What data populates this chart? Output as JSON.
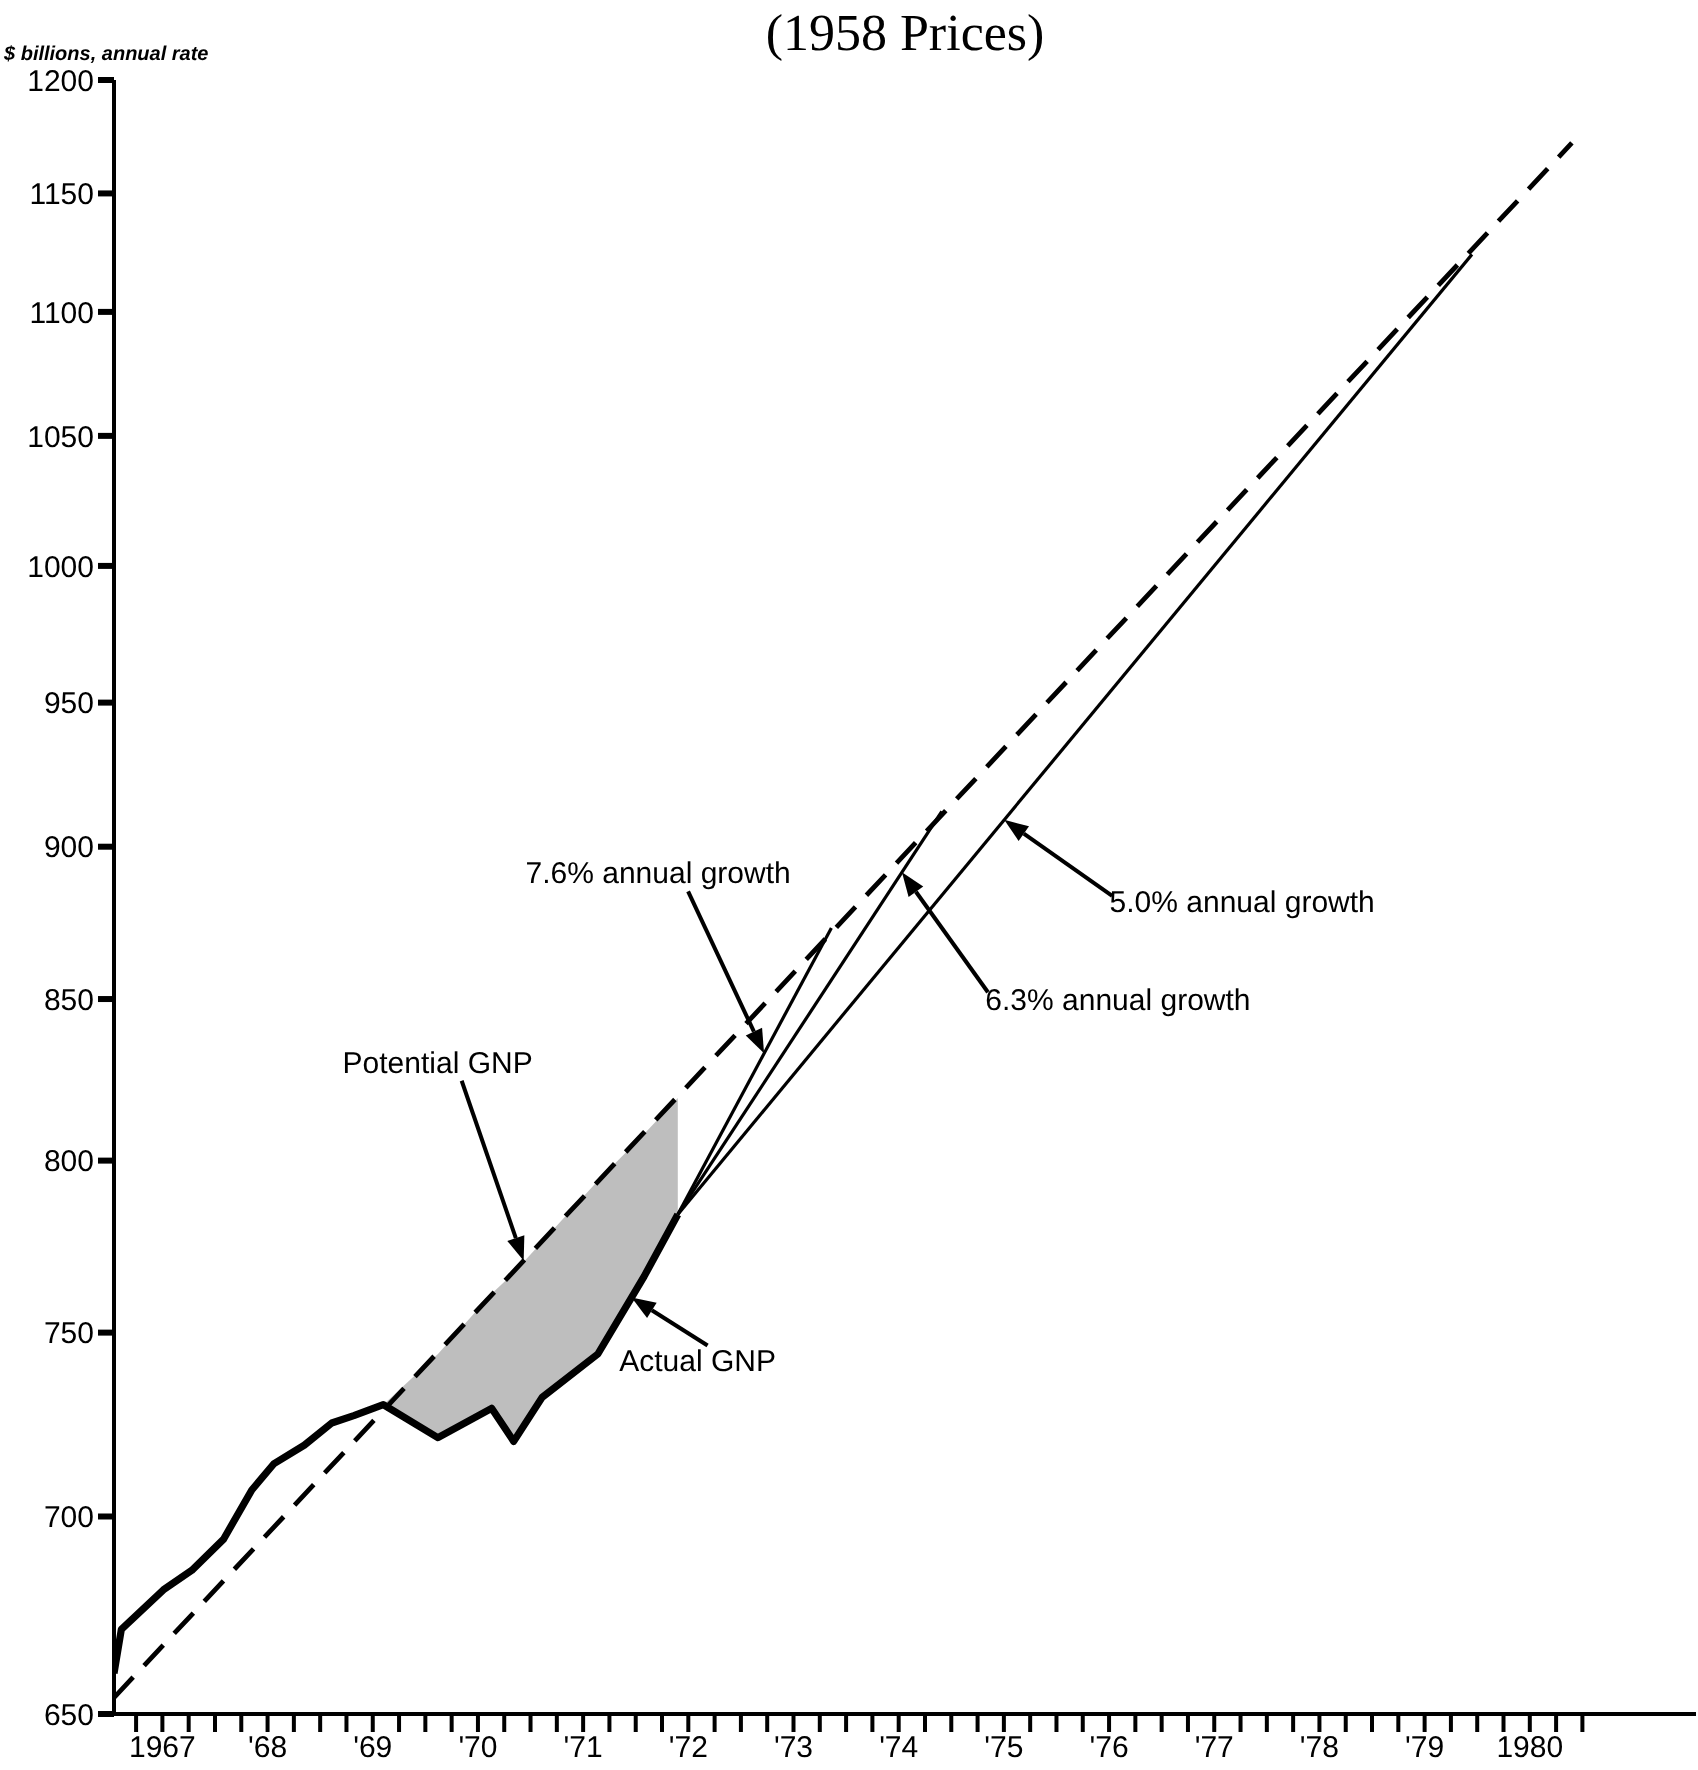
{
  "chart_data": {
    "type": "line",
    "title": "(1958 Prices)",
    "ylabel": "$ billions, annual rate",
    "log": "y",
    "ylim": [
      650,
      1200
    ],
    "yticks": [
      650,
      700,
      750,
      800,
      850,
      900,
      950,
      1000,
      1050,
      1100,
      1150,
      1200
    ],
    "xlim": [
      1966.54,
      1981.58
    ],
    "xticks": [
      {
        "value": 1966.75,
        "label": null
      },
      {
        "value": 1967,
        "label": "1967"
      },
      {
        "value": 1967.25,
        "label": null
      },
      {
        "value": 1967.5,
        "label": null
      },
      {
        "value": 1967.75,
        "label": null
      },
      {
        "value": 1968,
        "label": "'68"
      },
      {
        "value": 1968.25,
        "label": null
      },
      {
        "value": 1968.5,
        "label": null
      },
      {
        "value": 1968.75,
        "label": null
      },
      {
        "value": 1969,
        "label": "'69"
      },
      {
        "value": 1969.25,
        "label": null
      },
      {
        "value": 1969.5,
        "label": null
      },
      {
        "value": 1969.75,
        "label": null
      },
      {
        "value": 1970,
        "label": "'70"
      },
      {
        "value": 1970.25,
        "label": null
      },
      {
        "value": 1970.5,
        "label": null
      },
      {
        "value": 1970.75,
        "label": null
      },
      {
        "value": 1971,
        "label": "'71"
      },
      {
        "value": 1971.25,
        "label": null
      },
      {
        "value": 1971.5,
        "label": null
      },
      {
        "value": 1971.75,
        "label": null
      },
      {
        "value": 1972,
        "label": "'72"
      },
      {
        "value": 1972.25,
        "label": null
      },
      {
        "value": 1972.5,
        "label": null
      },
      {
        "value": 1972.75,
        "label": null
      },
      {
        "value": 1973,
        "label": "'73"
      },
      {
        "value": 1973.25,
        "label": null
      },
      {
        "value": 1973.5,
        "label": null
      },
      {
        "value": 1973.75,
        "label": null
      },
      {
        "value": 1974,
        "label": "'74"
      },
      {
        "value": 1974.25,
        "label": null
      },
      {
        "value": 1974.5,
        "label": null
      },
      {
        "value": 1974.75,
        "label": null
      },
      {
        "value": 1975,
        "label": "'75"
      },
      {
        "value": 1975.25,
        "label": null
      },
      {
        "value": 1975.5,
        "label": null
      },
      {
        "value": 1975.75,
        "label": null
      },
      {
        "value": 1976,
        "label": "'76"
      },
      {
        "value": 1976.25,
        "label": null
      },
      {
        "value": 1976.5,
        "label": null
      },
      {
        "value": 1976.75,
        "label": null
      },
      {
        "value": 1977,
        "label": "'77"
      },
      {
        "value": 1977.25,
        "label": null
      },
      {
        "value": 1977.5,
        "label": null
      },
      {
        "value": 1977.75,
        "label": null
      },
      {
        "value": 1978,
        "label": "'78"
      },
      {
        "value": 1978.25,
        "label": null
      },
      {
        "value": 1978.5,
        "label": null
      },
      {
        "value": 1978.75,
        "label": null
      },
      {
        "value": 1979,
        "label": "'79"
      },
      {
        "value": 1979.25,
        "label": null
      },
      {
        "value": 1979.5,
        "label": null
      },
      {
        "value": 1979.75,
        "label": null
      },
      {
        "value": 1980,
        "label": "1980"
      },
      {
        "value": 1980.25,
        "label": null
      },
      {
        "value": 1980.5,
        "label": null
      }
    ],
    "series": [
      {
        "line_style": "dashed",
        "color": "#000000",
        "x": [
          1966.54,
          1980.4
        ],
        "values": [
          654,
          1172
        ]
      },
      {
        "line_style": "solid",
        "color": "#000000",
        "x": [
          1966.54,
          1966.61,
          1967.01,
          1967.28,
          1967.58,
          1967.85,
          1968.06,
          1968.35,
          1968.61,
          1968.82,
          1969.1,
          1969.62,
          1970.13,
          1970.34,
          1970.61,
          1971.14,
          1971.58,
          1971.9
        ],
        "values": [
          660,
          671,
          681,
          686,
          694,
          707,
          714,
          719,
          725,
          727,
          730,
          721,
          729,
          720,
          732,
          744,
          766,
          784
        ],
        "lower": [
          null,
          null,
          null,
          null,
          null,
          null,
          null,
          null,
          null,
          null,
          730,
          721,
          729,
          720,
          732,
          744,
          766,
          784
        ],
        "upper": [
          null,
          null,
          null,
          null,
          null,
          null,
          null,
          null,
          null,
          null,
          730,
          744,
          761,
          767,
          776,
          794,
          808,
          819
        ]
      },
      {
        "line_style": "solid",
        "color": "#000000",
        "x": [
          1971.9,
          1973.36
        ],
        "values": [
          784,
          873
        ]
      },
      {
        "line_style": "solid",
        "color": "#000000",
        "x": [
          1971.9,
          1974.41
        ],
        "values": [
          784,
          912
        ]
      },
      {
        "line_style": "solid",
        "color": "#000000",
        "x": [
          1971.9,
          1979.45
        ],
        "values": [
          784,
          1124
        ]
      }
    ],
    "annotations": [
      "Potential GNP",
      "Actual GNP",
      "7.6% annual growth",
      "6.3% annual growth",
      "5.0% annual growth"
    ]
  }
}
